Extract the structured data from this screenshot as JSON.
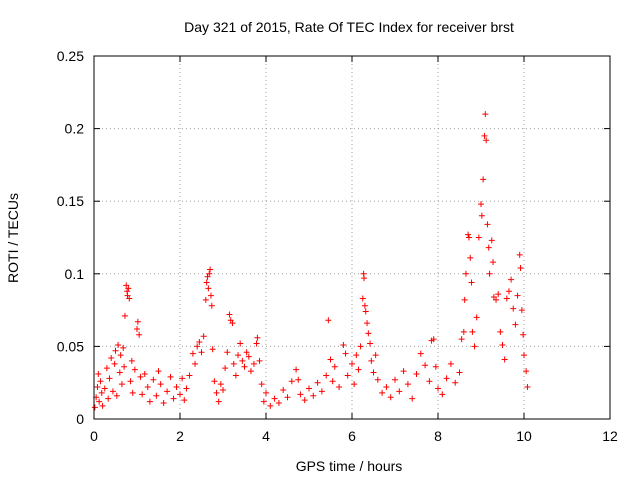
{
  "chart_data": {
    "type": "scatter",
    "title": "Day 321 of 2015, Rate Of TEC Index for receiver brst",
    "xlabel": "GPS time / hours",
    "ylabel": "ROTI / TECUs",
    "xlim": [
      0,
      12
    ],
    "ylim": [
      0,
      0.25
    ],
    "xticks": [
      0,
      2,
      4,
      6,
      8,
      10,
      12
    ],
    "yticks": [
      0,
      0.05,
      0.1,
      0.15,
      0.2,
      0.25
    ],
    "ytick_labels": [
      "0",
      "0.05",
      "0.1",
      "0.15",
      "0.2",
      "0.25"
    ],
    "grid": true,
    "marker": "+",
    "color": "#ff0000",
    "series": [
      {
        "name": "ROTI",
        "points": [
          [
            0.02,
            0.008
          ],
          [
            0.05,
            0.015
          ],
          [
            0.08,
            0.022
          ],
          [
            0.1,
            0.031
          ],
          [
            0.12,
            0.012
          ],
          [
            0.15,
            0.026
          ],
          [
            0.18,
            0.018
          ],
          [
            0.2,
            0.009
          ],
          [
            0.25,
            0.021
          ],
          [
            0.3,
            0.035
          ],
          [
            0.33,
            0.014
          ],
          [
            0.36,
            0.028
          ],
          [
            0.4,
            0.042
          ],
          [
            0.44,
            0.019
          ],
          [
            0.48,
            0.038
          ],
          [
            0.5,
            0.047
          ],
          [
            0.53,
            0.016
          ],
          [
            0.56,
            0.051
          ],
          [
            0.6,
            0.032
          ],
          [
            0.62,
            0.044
          ],
          [
            0.65,
            0.024
          ],
          [
            0.68,
            0.049
          ],
          [
            0.7,
            0.036
          ],
          [
            0.72,
            0.071
          ],
          [
            0.75,
            0.092
          ],
          [
            0.77,
            0.088
          ],
          [
            0.78,
            0.085
          ],
          [
            0.8,
            0.09
          ],
          [
            0.82,
            0.083
          ],
          [
            0.85,
            0.026
          ],
          [
            0.88,
            0.04
          ],
          [
            0.9,
            0.018
          ],
          [
            0.95,
            0.034
          ],
          [
            1.0,
            0.062
          ],
          [
            1.02,
            0.067
          ],
          [
            1.05,
            0.058
          ],
          [
            1.08,
            0.029
          ],
          [
            1.12,
            0.017
          ],
          [
            1.18,
            0.031
          ],
          [
            1.25,
            0.022
          ],
          [
            1.3,
            0.012
          ],
          [
            1.38,
            0.027
          ],
          [
            1.45,
            0.016
          ],
          [
            1.5,
            0.033
          ],
          [
            1.55,
            0.024
          ],
          [
            1.62,
            0.011
          ],
          [
            1.7,
            0.019
          ],
          [
            1.78,
            0.029
          ],
          [
            1.85,
            0.014
          ],
          [
            1.92,
            0.022
          ],
          [
            2.0,
            0.017
          ],
          [
            2.05,
            0.028
          ],
          [
            2.1,
            0.013
          ],
          [
            2.15,
            0.021
          ],
          [
            2.22,
            0.03
          ],
          [
            2.3,
            0.045
          ],
          [
            2.35,
            0.038
          ],
          [
            2.4,
            0.05
          ],
          [
            2.45,
            0.053
          ],
          [
            2.5,
            0.046
          ],
          [
            2.55,
            0.057
          ],
          [
            2.6,
            0.082
          ],
          [
            2.62,
            0.094
          ],
          [
            2.64,
            0.098
          ],
          [
            2.66,
            0.09
          ],
          [
            2.68,
            0.1
          ],
          [
            2.7,
            0.103
          ],
          [
            2.72,
            0.085
          ],
          [
            2.74,
            0.078
          ],
          [
            2.76,
            0.048
          ],
          [
            2.8,
            0.026
          ],
          [
            2.85,
            0.018
          ],
          [
            2.9,
            0.012
          ],
          [
            2.95,
            0.024
          ],
          [
            3.0,
            0.02
          ],
          [
            3.05,
            0.035
          ],
          [
            3.1,
            0.046
          ],
          [
            3.15,
            0.072
          ],
          [
            3.18,
            0.068
          ],
          [
            3.22,
            0.066
          ],
          [
            3.25,
            0.038
          ],
          [
            3.3,
            0.03
          ],
          [
            3.35,
            0.044
          ],
          [
            3.4,
            0.052
          ],
          [
            3.45,
            0.04
          ],
          [
            3.5,
            0.036
          ],
          [
            3.55,
            0.046
          ],
          [
            3.6,
            0.043
          ],
          [
            3.65,
            0.033
          ],
          [
            3.72,
            0.038
          ],
          [
            3.78,
            0.052
          ],
          [
            3.8,
            0.056
          ],
          [
            3.85,
            0.04
          ],
          [
            3.9,
            0.024
          ],
          [
            3.95,
            0.012
          ],
          [
            4.0,
            0.018
          ],
          [
            4.1,
            0.009
          ],
          [
            4.2,
            0.014
          ],
          [
            4.3,
            0.011
          ],
          [
            4.4,
            0.02
          ],
          [
            4.5,
            0.015
          ],
          [
            4.6,
            0.026
          ],
          [
            4.7,
            0.034
          ],
          [
            4.75,
            0.027
          ],
          [
            4.8,
            0.017
          ],
          [
            4.9,
            0.013
          ],
          [
            5.0,
            0.021
          ],
          [
            5.1,
            0.016
          ],
          [
            5.2,
            0.025
          ],
          [
            5.3,
            0.019
          ],
          [
            5.4,
            0.03
          ],
          [
            5.45,
            0.068
          ],
          [
            5.5,
            0.041
          ],
          [
            5.55,
            0.026
          ],
          [
            5.6,
            0.036
          ],
          [
            5.7,
            0.022
          ],
          [
            5.8,
            0.051
          ],
          [
            5.85,
            0.045
          ],
          [
            5.9,
            0.03
          ],
          [
            6.0,
            0.038
          ],
          [
            6.05,
            0.024
          ],
          [
            6.1,
            0.044
          ],
          [
            6.15,
            0.034
          ],
          [
            6.2,
            0.05
          ],
          [
            6.25,
            0.083
          ],
          [
            6.27,
            0.1
          ],
          [
            6.28,
            0.097
          ],
          [
            6.3,
            0.078
          ],
          [
            6.32,
            0.074
          ],
          [
            6.35,
            0.066
          ],
          [
            6.38,
            0.059
          ],
          [
            6.42,
            0.052
          ],
          [
            6.45,
            0.04
          ],
          [
            6.5,
            0.032
          ],
          [
            6.55,
            0.044
          ],
          [
            6.6,
            0.027
          ],
          [
            6.7,
            0.018
          ],
          [
            6.8,
            0.022
          ],
          [
            6.9,
            0.015
          ],
          [
            7.0,
            0.027
          ],
          [
            7.1,
            0.019
          ],
          [
            7.2,
            0.033
          ],
          [
            7.3,
            0.024
          ],
          [
            7.4,
            0.014
          ],
          [
            7.5,
            0.031
          ],
          [
            7.6,
            0.045
          ],
          [
            7.7,
            0.037
          ],
          [
            7.8,
            0.026
          ],
          [
            7.85,
            0.054
          ],
          [
            7.9,
            0.055
          ],
          [
            7.95,
            0.036
          ],
          [
            8.0,
            0.021
          ],
          [
            8.1,
            0.017
          ],
          [
            8.2,
            0.028
          ],
          [
            8.3,
            0.038
          ],
          [
            8.4,
            0.025
          ],
          [
            8.5,
            0.032
          ],
          [
            8.55,
            0.055
          ],
          [
            8.6,
            0.06
          ],
          [
            8.62,
            0.082
          ],
          [
            8.65,
            0.1
          ],
          [
            8.7,
            0.127
          ],
          [
            8.72,
            0.125
          ],
          [
            8.75,
            0.111
          ],
          [
            8.78,
            0.094
          ],
          [
            8.8,
            0.06
          ],
          [
            8.85,
            0.05
          ],
          [
            8.9,
            0.07
          ],
          [
            8.95,
            0.125
          ],
          [
            9.0,
            0.148
          ],
          [
            9.02,
            0.14
          ],
          [
            9.05,
            0.165
          ],
          [
            9.08,
            0.195
          ],
          [
            9.1,
            0.21
          ],
          [
            9.12,
            0.192
          ],
          [
            9.15,
            0.134
          ],
          [
            9.18,
            0.118
          ],
          [
            9.2,
            0.1
          ],
          [
            9.25,
            0.123
          ],
          [
            9.28,
            0.108
          ],
          [
            9.3,
            0.084
          ],
          [
            9.35,
            0.082
          ],
          [
            9.4,
            0.086
          ],
          [
            9.45,
            0.06
          ],
          [
            9.5,
            0.051
          ],
          [
            9.55,
            0.041
          ],
          [
            9.6,
            0.083
          ],
          [
            9.65,
            0.088
          ],
          [
            9.7,
            0.096
          ],
          [
            9.75,
            0.076
          ],
          [
            9.8,
            0.065
          ],
          [
            9.85,
            0.085
          ],
          [
            9.9,
            0.113
          ],
          [
            9.92,
            0.104
          ],
          [
            9.95,
            0.075
          ],
          [
            9.98,
            0.058
          ],
          [
            10.0,
            0.044
          ],
          [
            10.05,
            0.033
          ],
          [
            10.08,
            0.022
          ]
        ]
      }
    ]
  }
}
